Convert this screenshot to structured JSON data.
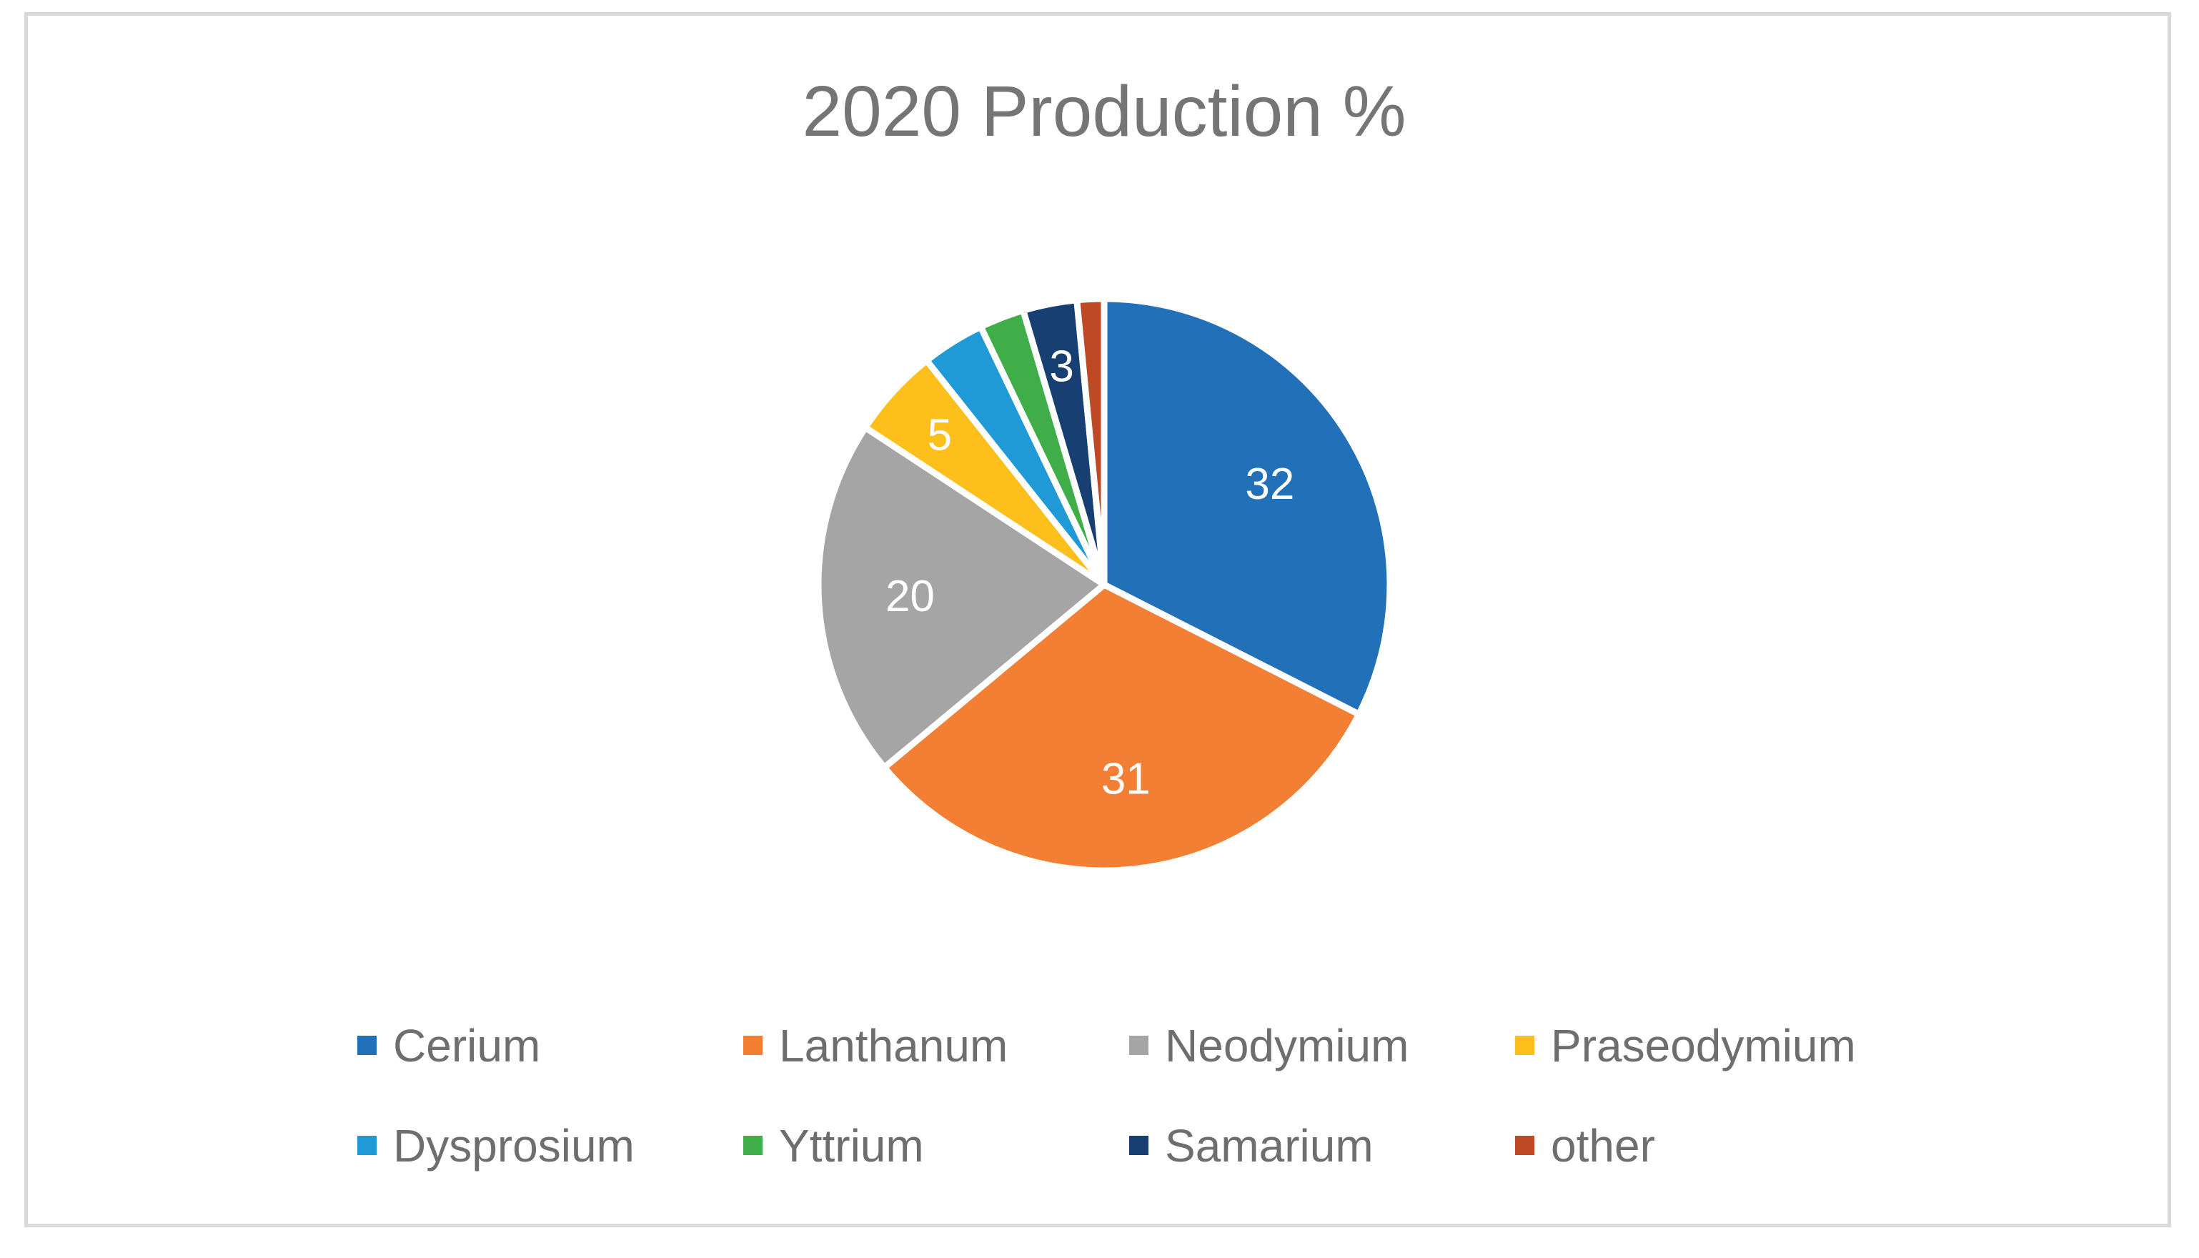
{
  "chart_data": {
    "type": "pie",
    "title": "2020 Production %",
    "categories": [
      "Cerium",
      "Lanthanum",
      "Neodymium",
      "Praseodymium",
      "Dysprosium",
      "Yttrium",
      "Samarium",
      "other"
    ],
    "values": [
      32,
      31,
      20,
      5,
      3.5,
      2.5,
      3,
      1.5
    ],
    "data_labels": [
      "32",
      "31",
      "20",
      "5",
      "",
      "",
      "3",
      ""
    ],
    "colors": [
      "#2271b8",
      "#f27f34",
      "#a5a5a5",
      "#fcbf1c",
      "#1f9ad6",
      "#3fae49",
      "#173f72",
      "#bd4a25"
    ],
    "legend_position": "bottom"
  }
}
